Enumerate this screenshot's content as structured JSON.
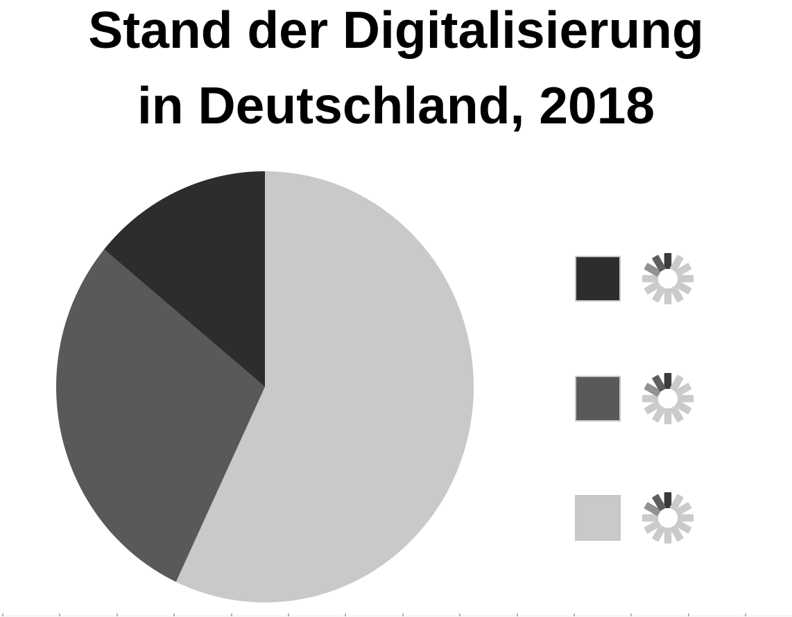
{
  "title": {
    "line1": "Stand der Digitalisierung",
    "line2": "in Deutschland, 2018"
  },
  "chart_data": {
    "type": "pie",
    "title": "Stand der Digitalisierung in Deutschland, 2018",
    "start_angle_deg": 90,
    "direction": "counterclockwise",
    "legend_position": "right",
    "legend_labels_state": "loading",
    "slices": [
      {
        "label": "",
        "value": 14,
        "color": "#2d2d2d",
        "legend_icon": "loading-spinner-icon"
      },
      {
        "label": "",
        "value": 29,
        "color": "#595959",
        "legend_icon": "loading-spinner-icon"
      },
      {
        "label": "",
        "value": 57,
        "color": "#c9c9c9",
        "legend_icon": "loading-spinner-icon"
      }
    ]
  },
  "bottom_ruler": {
    "tick_count": 14,
    "first_tick_x": 3,
    "tick_spacing": 82.4,
    "tick_color": "#b0b0b0"
  }
}
